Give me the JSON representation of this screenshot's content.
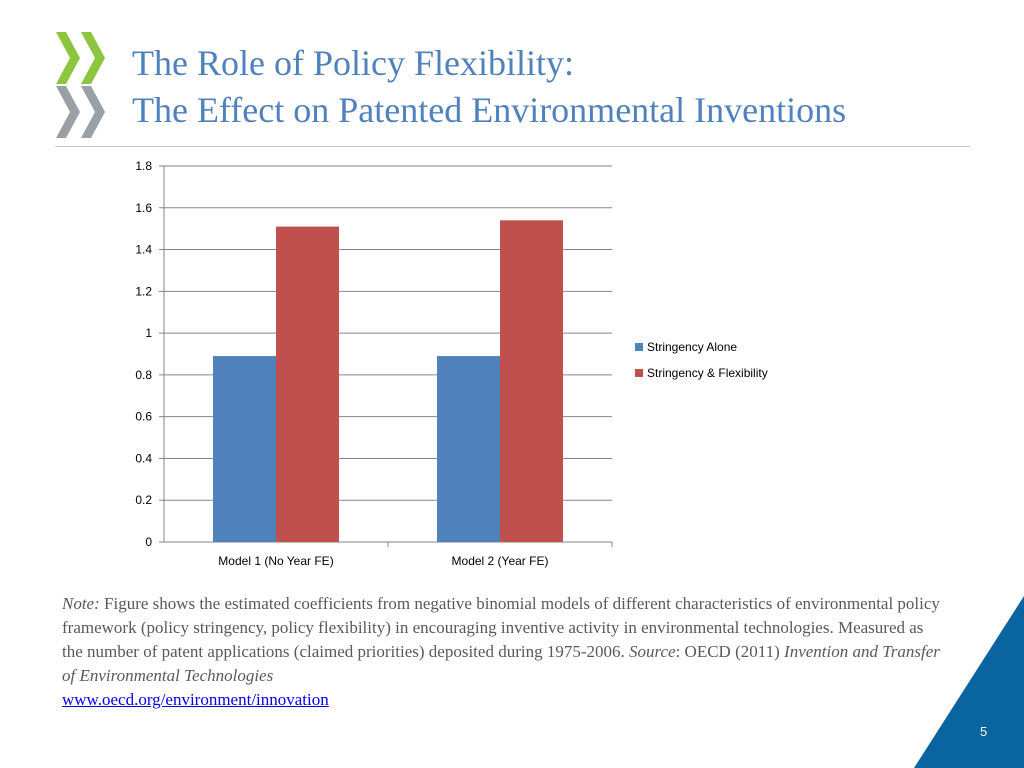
{
  "slide": {
    "title_line1": "The Role of Policy Flexibility:",
    "title_line2": "The Effect on Patented Environmental Inventions",
    "page_number": "5",
    "logo_icon": "oecd-chevrons-logo",
    "colors": {
      "title": "#4f81bd",
      "logo_green": "#8cc63f",
      "logo_gray": "#9aa1a6",
      "corner_blue": "#0a64a0"
    }
  },
  "note": {
    "label": "Note:",
    "text": " Figure shows the estimated coefficients from negative binomial models of different characteristics of environmental policy framework (policy stringency, policy flexibility) in encouraging inventive activity in environmental technologies. Measured as the number of patent applications (claimed priorities) deposited during 1975-2006.  ",
    "source_label": "Source",
    "source_text": ": OECD (2011) ",
    "source_title": "Invention and Transfer of Environmental Technologies",
    "link": "www.oecd.org/environment/innovation"
  },
  "chart_data": {
    "type": "bar",
    "categories": [
      "Model 1 (No Year FE)",
      "Model 2 (Year FE)"
    ],
    "series": [
      {
        "name": "Stringency Alone",
        "values": [
          0.89,
          0.89
        ],
        "color": "#4f81bd"
      },
      {
        "name": "Stringency & Flexibility",
        "values": [
          1.51,
          1.54
        ],
        "color": "#c0504d"
      }
    ],
    "title": "",
    "xlabel": "",
    "ylabel": "",
    "ylim": [
      0,
      1.8
    ],
    "yticks": [
      "0",
      "0.2",
      "0.4",
      "0.6",
      "0.8",
      "1",
      "1.2",
      "1.4",
      "1.6",
      "1.8"
    ],
    "grid": true,
    "legend": "right"
  }
}
